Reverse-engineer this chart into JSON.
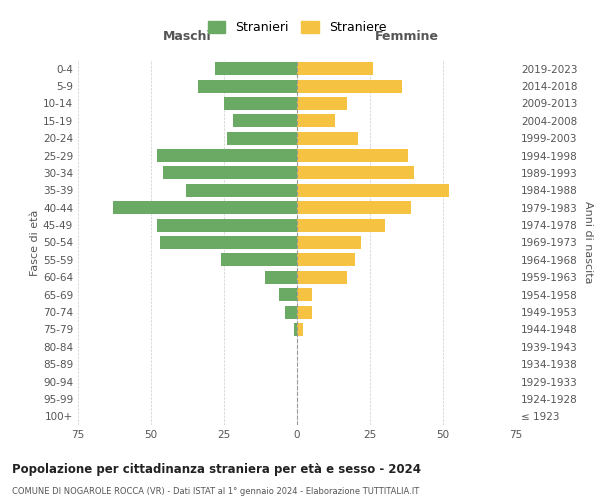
{
  "age_groups": [
    "0-4",
    "5-9",
    "10-14",
    "15-19",
    "20-24",
    "25-29",
    "30-34",
    "35-39",
    "40-44",
    "45-49",
    "50-54",
    "55-59",
    "60-64",
    "65-69",
    "70-74",
    "75-79",
    "80-84",
    "85-89",
    "90-94",
    "95-99",
    "100+"
  ],
  "birth_years": [
    "2019-2023",
    "2014-2018",
    "2009-2013",
    "2004-2008",
    "1999-2003",
    "1994-1998",
    "1989-1993",
    "1984-1988",
    "1979-1983",
    "1974-1978",
    "1969-1973",
    "1964-1968",
    "1959-1963",
    "1954-1958",
    "1949-1953",
    "1944-1948",
    "1939-1943",
    "1934-1938",
    "1929-1933",
    "1924-1928",
    "≤ 1923"
  ],
  "maschi": [
    28,
    34,
    25,
    22,
    24,
    48,
    46,
    38,
    63,
    48,
    47,
    26,
    11,
    6,
    4,
    1,
    0,
    0,
    0,
    0,
    0
  ],
  "femmine": [
    26,
    36,
    17,
    13,
    21,
    38,
    40,
    52,
    39,
    30,
    22,
    20,
    17,
    5,
    5,
    2,
    0,
    0,
    0,
    0,
    0
  ],
  "color_maschi": "#6aaa64",
  "color_femmine": "#f5c242",
  "title": "Popolazione per cittadinanza straniera per età e sesso - 2024",
  "subtitle": "COMUNE DI NOGAROLE ROCCA (VR) - Dati ISTAT al 1° gennaio 2024 - Elaborazione TUTTITALIA.IT",
  "xlabel_left": "Maschi",
  "xlabel_right": "Femmine",
  "ylabel_left": "Fasce di età",
  "ylabel_right": "Anni di nascita",
  "legend_maschi": "Stranieri",
  "legend_femmine": "Straniere",
  "xlim": 75,
  "background_color": "#ffffff",
  "grid_color": "#cccccc"
}
